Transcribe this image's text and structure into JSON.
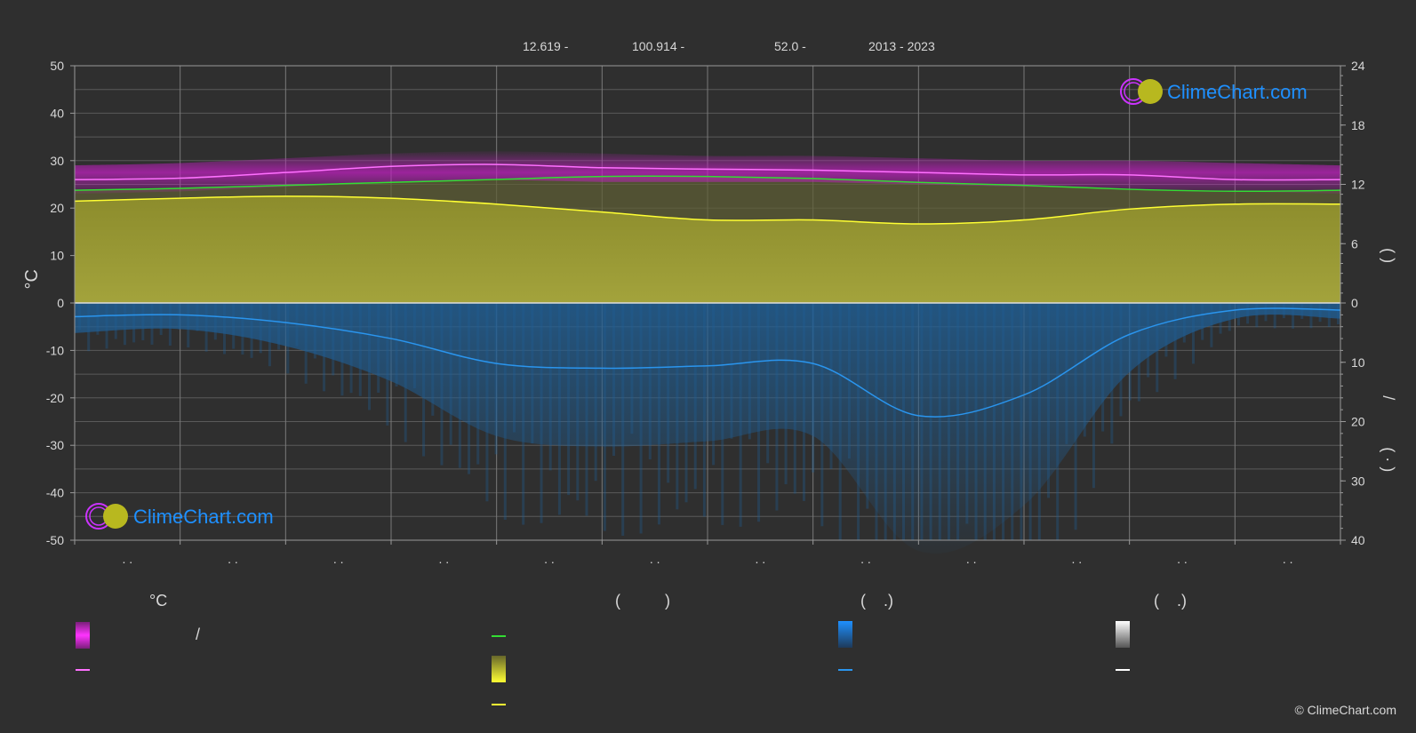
{
  "header": {
    "lat": "12.619 -",
    "lon": "100.914 -",
    "elev": "52.0 -",
    "years": "2013 - 2023"
  },
  "watermark": "ClimeChart.com",
  "copyright": "© ClimeChart.com",
  "legend": {
    "col1_title": "°C",
    "col1_slash": "/",
    "col2_title": "(          )",
    "col3_title": "(    .)",
    "col4_title": "(    .)"
  },
  "colors": {
    "bg": "#2f2f2f",
    "temp_band": "#c020c0",
    "temp_line": "#ff70ff",
    "daylight_line": "#33dd33",
    "sun_fill": "#9b9b35",
    "sun_line": "#ffff33",
    "rain_fill": "#1f5f96",
    "rain_line": "#2a95ee",
    "snow": "#ffffff"
  },
  "chart_data": {
    "type": "line",
    "title": "",
    "x": [
      0,
      1,
      2,
      3,
      4,
      5,
      6,
      7,
      8,
      9,
      10,
      11,
      12
    ],
    "x_tick_labels": [
      ". .",
      ". .",
      ". .",
      ". .",
      ". .",
      ". .",
      ". .",
      ". .",
      ". .",
      ". .",
      ". .",
      ". ."
    ],
    "ylabel": "°C",
    "ylim": [
      -50,
      50
    ],
    "y_ticks": [
      50,
      40,
      30,
      20,
      10,
      0,
      -10,
      -20,
      -30,
      -40,
      -50
    ],
    "y2_top_ticks": [
      24,
      18,
      12,
      6,
      0
    ],
    "y2_top_range": [
      0,
      24
    ],
    "y2_bottom_ticks": [
      0,
      10,
      20,
      30,
      40
    ],
    "y2_bottom_range": [
      0,
      40
    ],
    "y2_label_top": "(    )",
    "y2_label_mid": "/",
    "y2_label_bottom": "(  ·  )",
    "grid": true,
    "series": [
      {
        "key": "temp_max_band",
        "values": [
          29,
          29.5,
          30.5,
          31.5,
          32,
          31.5,
          31,
          31,
          30.5,
          30,
          30,
          29.5,
          29
        ]
      },
      {
        "key": "temp_min_band",
        "values": [
          23,
          23.5,
          24.5,
          25.5,
          26,
          25.5,
          25.5,
          25.5,
          25,
          24.5,
          24,
          23.5,
          23
        ]
      },
      {
        "key": "temp_mean",
        "values": [
          26,
          26.3,
          27.5,
          28.8,
          29.2,
          28.5,
          28.2,
          28,
          27.5,
          27,
          27,
          26,
          26
        ]
      },
      {
        "key": "daylight_hours",
        "values": [
          11.4,
          11.6,
          11.9,
          12.2,
          12.5,
          12.8,
          12.8,
          12.6,
          12.2,
          11.9,
          11.5,
          11.3,
          11.4
        ]
      },
      {
        "key": "sunshine_hours",
        "values": [
          10.3,
          10.6,
          10.8,
          10.6,
          10.0,
          9.2,
          8.4,
          8.4,
          8.0,
          8.4,
          9.5,
          10.0,
          10.0
        ]
      },
      {
        "key": "rain_mm",
        "values": [
          2.3,
          2.0,
          3.3,
          6.0,
          10.2,
          11.0,
          10.6,
          10.2,
          19.0,
          15.5,
          5.3,
          1.2,
          1.2
        ]
      }
    ]
  }
}
